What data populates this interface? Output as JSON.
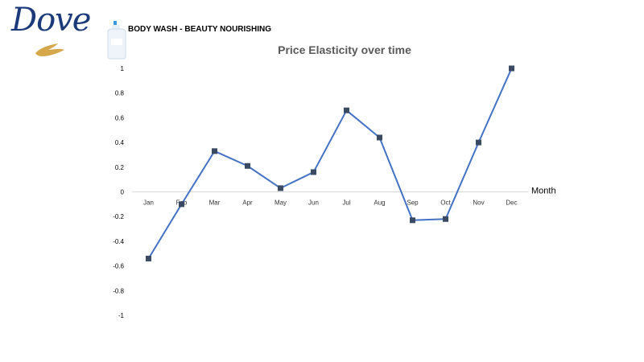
{
  "brand": {
    "logo_text": "Dove"
  },
  "product": {
    "title": "BODY WASH - BEAUTY NOURISHING"
  },
  "colors": {
    "line": "#4472C4",
    "marker": "#3b4a63",
    "axis": "#d9d9d9",
    "brand": "#1a3a7a",
    "gold": "#d4a84b"
  },
  "chart_data": {
    "type": "line",
    "title": "Price Elasticity over time",
    "xlabel": "Month",
    "ylabel": "",
    "categories": [
      "Jan",
      "Feb",
      "Mar",
      "Apr",
      "May",
      "Jun",
      "Jul",
      "Aug",
      "Sep",
      "Oct",
      "Nov",
      "Dec"
    ],
    "series": [
      {
        "values": [
          -0.54,
          -0.1,
          0.33,
          0.21,
          0.03,
          0.16,
          0.66,
          0.44,
          -0.23,
          -0.22,
          0.4,
          1.0
        ]
      }
    ],
    "ylim": [
      -1,
      1
    ],
    "yticks": [
      "1",
      "0.8",
      "0.6",
      "0.4",
      "0.2",
      "0",
      "-0.2",
      "-0.4",
      "-0.6",
      "-0.8",
      "-1"
    ],
    "grid": false,
    "legend": "none"
  }
}
